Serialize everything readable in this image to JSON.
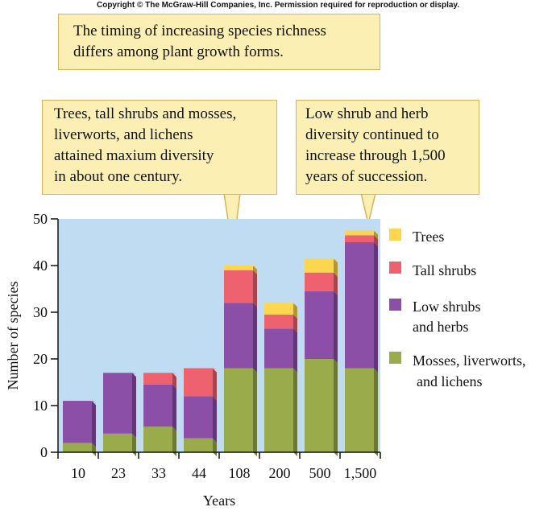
{
  "copyright": "Copyright © The McGraw-Hill Companies, Inc. Permission required for reproduction or display.",
  "callouts": {
    "top": "The timing of increasing species richness\ndiffers among plant growth forms.",
    "left": "Trees, tall shrubs and mosses,\nliverworts, and lichens\nattained maxium diversity\nin about one century.",
    "right": "Low shrub and herb\ndiversity continued to\nincrease through 1,500\nyears of succession."
  },
  "chart_data": {
    "type": "bar",
    "stacked": true,
    "categories": [
      "10",
      "23",
      "33",
      "44",
      "108",
      "200",
      "500",
      "1,500"
    ],
    "series": [
      {
        "name": "Mosses, liverworts, and lichens",
        "legend_lines": [
          "Mosses, liverworts,",
          "and lichens"
        ],
        "color": "#9aab4c",
        "values": [
          2,
          4,
          5.5,
          3,
          18,
          18,
          20,
          18
        ]
      },
      {
        "name": "Low shrubs and herbs",
        "legend_lines": [
          "Low shrubs",
          "and herbs"
        ],
        "color": "#8b4fa8",
        "values": [
          9,
          13,
          9,
          9,
          14,
          8.5,
          14.5,
          27
        ]
      },
      {
        "name": "Tall shrubs",
        "legend_lines": [
          "Tall shrubs"
        ],
        "color": "#ee6270",
        "values": [
          0,
          0,
          2.5,
          6,
          7,
          3,
          4,
          1.5
        ]
      },
      {
        "name": "Trees",
        "legend_lines": [
          "Trees"
        ],
        "color": "#fcd64e",
        "values": [
          0,
          0,
          0,
          0,
          1,
          2.5,
          3,
          1
        ]
      }
    ],
    "xlabel": "Years",
    "ylabel": "Number of species",
    "ylim": [
      0,
      50
    ],
    "yticks": [
      0,
      10,
      20,
      30,
      40,
      50
    ],
    "grid": false,
    "plot_background": "#bfdcf2",
    "legend_position": "right"
  }
}
